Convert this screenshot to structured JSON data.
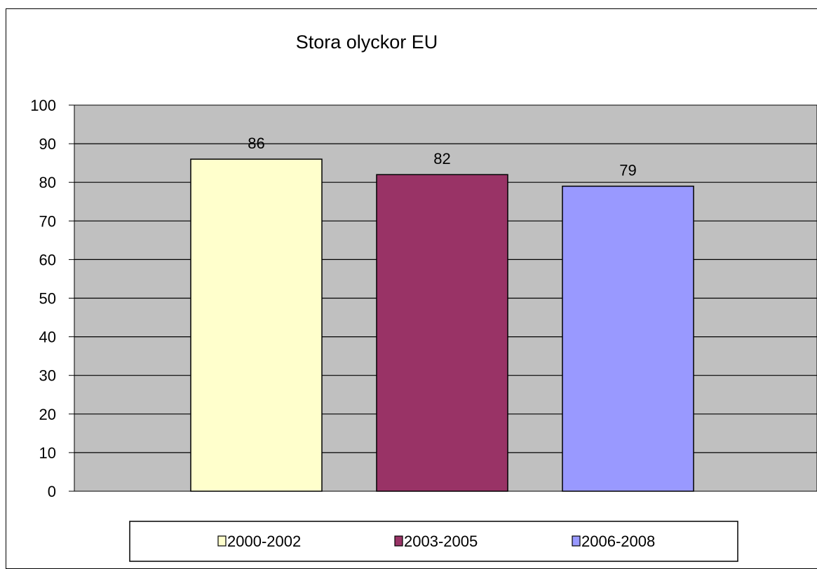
{
  "chart_data": {
    "type": "bar",
    "title": "Stora olyckor EU",
    "xlabel": "",
    "ylabel": "",
    "ylim": [
      0,
      100
    ],
    "yticks": [
      0,
      10,
      20,
      30,
      40,
      50,
      60,
      70,
      80,
      90,
      100
    ],
    "grid": true,
    "plot_background": "#c0c0c0",
    "legend_position": "bottom",
    "series": [
      {
        "name": "2000-2002",
        "value": 86,
        "color": "#ffffcc"
      },
      {
        "name": "2003-2005",
        "value": 82,
        "color": "#993366"
      },
      {
        "name": "2006-2008",
        "value": 79,
        "color": "#9999ff"
      }
    ]
  }
}
